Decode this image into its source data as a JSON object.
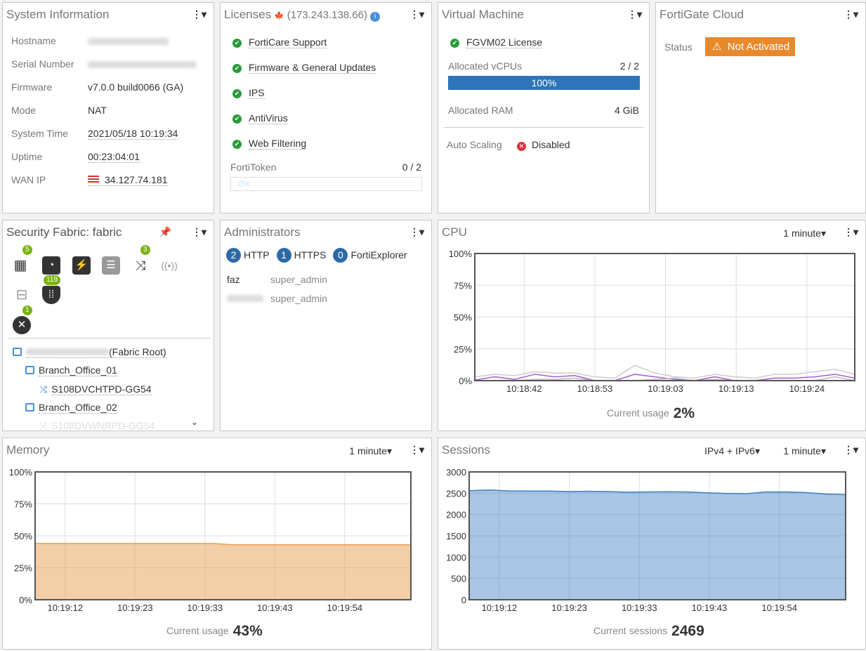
{
  "system_info": {
    "title": "System Information",
    "rows": [
      {
        "label": "Hostname",
        "value": ""
      },
      {
        "label": "Serial Number",
        "value": ""
      },
      {
        "label": "Firmware",
        "value": "v7.0.0 build0066 (GA)"
      },
      {
        "label": "Mode",
        "value": "NAT"
      },
      {
        "label": "System Time",
        "value": "2021/05/18 10:19:34"
      },
      {
        "label": "Uptime",
        "value": "00:23:04:01"
      },
      {
        "label": "WAN IP",
        "value": "34.127.74.181"
      }
    ]
  },
  "licenses": {
    "title": "Licenses",
    "ip": "(173.243.138.66)",
    "items": [
      "FortiCare Support",
      "Firmware & General Updates",
      "IPS",
      "AntiVirus",
      "Web Filtering"
    ],
    "fortitoken_label": "FortiToken",
    "fortitoken_value": "0 / 2",
    "fortitoken_pct": "0%",
    "fortitoken_fraction": 0
  },
  "vm": {
    "title": "Virtual Machine",
    "license": "FGVM02 License",
    "vcpu_label": "Allocated vCPUs",
    "vcpu_value": "2 / 2",
    "vcpu_pct": "100%",
    "vcpu_fraction": 1,
    "ram_label": "Allocated RAM",
    "ram_value": "4 GiB",
    "autoscale_label": "Auto Scaling",
    "autoscale_value": "Disabled"
  },
  "cloud": {
    "title": "FortiGate Cloud",
    "status_label": "Status",
    "status_value": "Not Activated",
    "status_color": "#e8892b"
  },
  "fabric": {
    "title": "Security Fabric: fabric",
    "badges": {
      "firewall": "5",
      "switch": "3",
      "endpoints": "119",
      "vuln": "1"
    },
    "tree": [
      {
        "name": "",
        "suffix": "(Fabric Root)"
      },
      {
        "name": "Branch_Office_01"
      },
      {
        "name": "S108DVCHTPD-GG54"
      },
      {
        "name": "Branch_Office_02"
      },
      {
        "name": "S108DVWNRPD-GG54"
      }
    ]
  },
  "admins": {
    "title": "Administrators",
    "counts": [
      {
        "n": "2",
        "label": "HTTP"
      },
      {
        "n": "1",
        "label": "HTTPS"
      },
      {
        "n": "0",
        "label": "FortiExplorer"
      }
    ],
    "users": [
      {
        "name": "faz",
        "role": "super_admin"
      },
      {
        "name": "",
        "role": "super_admin"
      }
    ]
  },
  "cpu": {
    "title": "CPU",
    "range": "1 minute",
    "current_label": "Current usage",
    "current_value": "2%"
  },
  "memory": {
    "title": "Memory",
    "range": "1 minute",
    "current_label": "Current usage",
    "current_value": "43%"
  },
  "sessions": {
    "title": "Sessions",
    "filter": "IPv4 + IPv6",
    "range": "1 minute",
    "current_label": "Current sessions",
    "current_value": "2469"
  },
  "chart_data": [
    {
      "type": "line",
      "title": "CPU",
      "ylim": [
        0,
        100
      ],
      "yticks": [
        "0%",
        "25%",
        "50%",
        "75%",
        "100%"
      ],
      "xticks": [
        "10:18:42",
        "10:18:53",
        "10:19:03",
        "10:19:13",
        "10:19:24"
      ],
      "grid": true,
      "series": [
        {
          "values": [
            3,
            5,
            4,
            7,
            6,
            6,
            3,
            2,
            12,
            6,
            3,
            2,
            5,
            3,
            2,
            5,
            5,
            7,
            9,
            5
          ],
          "color": "#cccccc"
        },
        {
          "values": [
            0.5,
            3,
            1,
            5,
            3,
            4,
            0,
            0,
            5,
            3,
            1,
            0,
            3,
            0,
            0,
            2,
            2,
            3,
            5,
            2
          ],
          "color": "#a65fd0"
        },
        {
          "values": [
            0,
            0,
            0,
            1,
            1,
            2,
            0,
            0,
            0,
            1,
            2,
            0,
            1,
            0,
            0,
            0,
            0,
            0,
            3,
            0
          ],
          "color": "#bbbbbb"
        }
      ]
    },
    {
      "type": "area",
      "title": "Memory",
      "ylim": [
        0,
        100
      ],
      "yticks": [
        "0%",
        "25%",
        "50%",
        "75%",
        "100%"
      ],
      "xticks": [
        "10:19:12",
        "10:19:23",
        "10:19:33",
        "10:19:43",
        "10:19:54"
      ],
      "grid": true,
      "series": [
        {
          "values": [
            44,
            44,
            44,
            44,
            44,
            44,
            44,
            44,
            44,
            44,
            43,
            43,
            43,
            43,
            43,
            43,
            43,
            43,
            43,
            43
          ],
          "color": "#e8a04f"
        }
      ]
    },
    {
      "type": "area",
      "title": "Sessions",
      "ylim": [
        0,
        3000
      ],
      "yticks": [
        "0",
        "500",
        "1000",
        "1500",
        "2000",
        "2500",
        "3000"
      ],
      "xticks": [
        "10:19:12",
        "10:19:23",
        "10:19:33",
        "10:19:43",
        "10:19:54"
      ],
      "grid": true,
      "series": [
        {
          "values": [
            2560,
            2575,
            2555,
            2550,
            2550,
            2540,
            2545,
            2540,
            2525,
            2530,
            2535,
            2530,
            2510,
            2495,
            2490,
            2530,
            2530,
            2515,
            2480,
            2469
          ],
          "color": "#3f7fc4"
        }
      ]
    }
  ]
}
